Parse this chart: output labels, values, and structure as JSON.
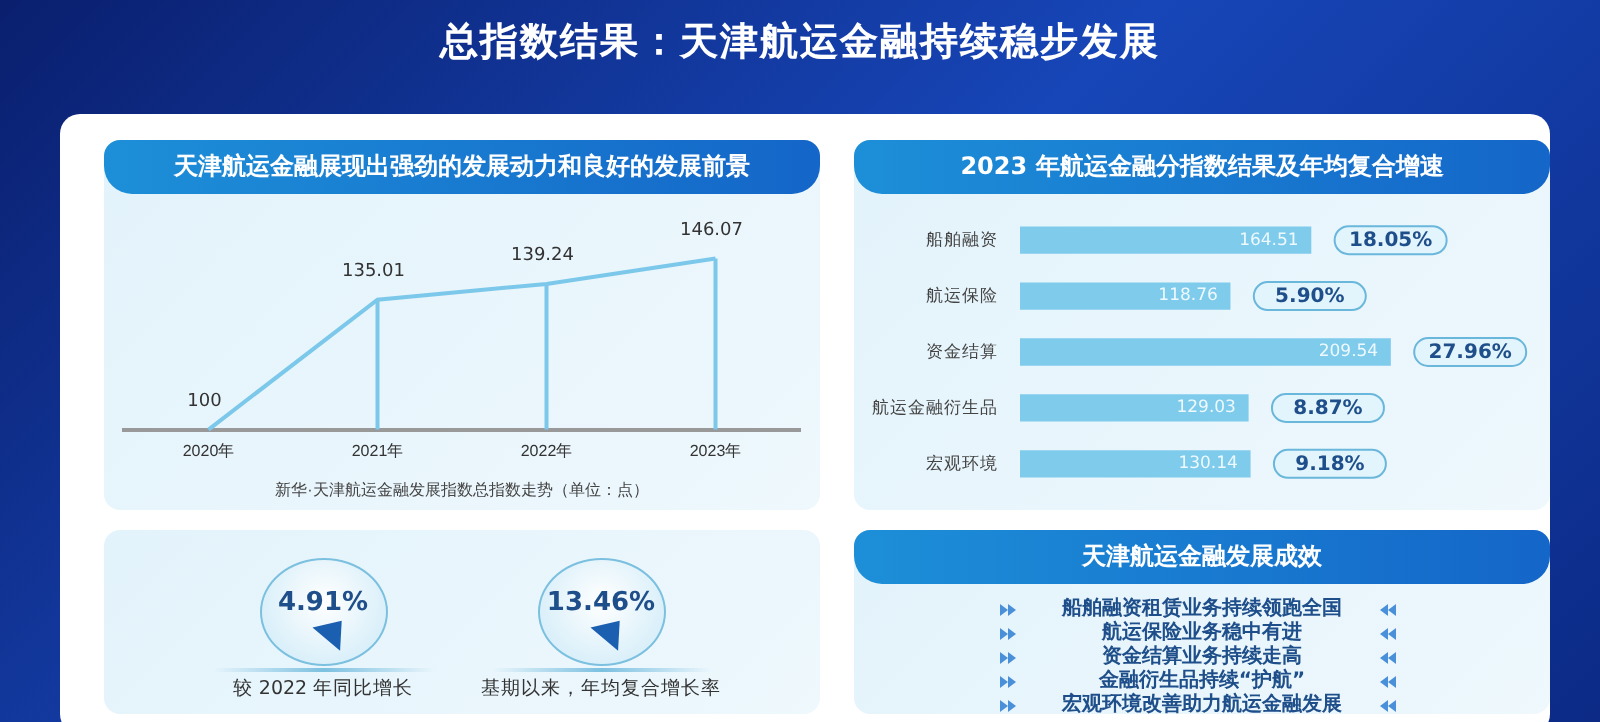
{
  "chart_data": [
    {
      "type": "other",
      "title": "总指数结果：天津航运金融持续稳步发展"
    },
    {
      "type": "line",
      "title": "天津航运金融展现出强劲的发展动力和良好的发展前景",
      "xlabel": "新华·天津航运金融发展指数总指数走势（单位：点）",
      "categories": [
        "2020年",
        "2021年",
        "2022年",
        "2023年"
      ],
      "values": [
        100,
        135.01,
        139.24,
        146.07
      ],
      "color": "#7cc8ea",
      "data_labels": true,
      "tick_labels": "x",
      "marker": "none",
      "grid": "x",
      "legend": false
    },
    {
      "type": "bar",
      "orientation": "horizontal",
      "title": "2023 年航运金融分指数结果及年均复合增速",
      "categories": [
        "船舶融资",
        "航运保险",
        "资金结算",
        "航运金融衍生品",
        "宏观环境"
      ],
      "values": [
        164.51,
        118.76,
        209.54,
        129.03,
        130.14
      ],
      "color": "#7fcbec",
      "data_labels": true,
      "xlim": [
        0,
        300
      ],
      "tick_labels": "y",
      "grid": false,
      "legend": false,
      "annotations": [
        "18.05%",
        "5.90%",
        "27.96%",
        "8.87%",
        "9.18%"
      ]
    },
    {
      "type": "other",
      "categories": [
        "较 2022 年同比增长",
        "基期以来，年均复合增长率"
      ],
      "values": [
        4.91,
        13.46
      ],
      "value_labels": [
        "4.91%",
        "13.46%"
      ]
    },
    {
      "type": "other",
      "title": "天津航运金融发展成效",
      "annotations": [
        "船舶融资租赁业务持续领跑全国",
        "航运保险业务稳中有进",
        "资金结算业务持续走高",
        "金融衍生品持续“护航”",
        "宏观环境改善助力航运金融发展"
      ]
    }
  ]
}
